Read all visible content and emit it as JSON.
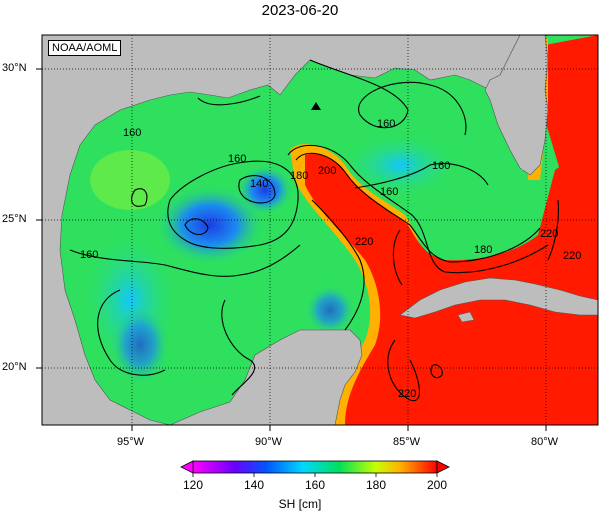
{
  "title": "2023-06-20",
  "credit": "NOAA/AOML",
  "map": {
    "lat_labels": [
      "30°N",
      "25°N",
      "20°N"
    ],
    "lon_labels": [
      "95°W",
      "90°W",
      "85°W",
      "80°W"
    ],
    "contour_labels": [
      "160",
      "160",
      "160",
      "160",
      "160",
      "140",
      "180",
      "160",
      "200",
      "220",
      "180",
      "220",
      "220",
      "220"
    ],
    "colors": {
      "land": "#bdbdbd",
      "low": "#2a6df5",
      "mid": "#1ee05a",
      "high": "#ff1f00"
    }
  },
  "colorbar": {
    "ticks": [
      "120",
      "140",
      "160",
      "180",
      "200"
    ],
    "label": "SH [cm]"
  }
}
